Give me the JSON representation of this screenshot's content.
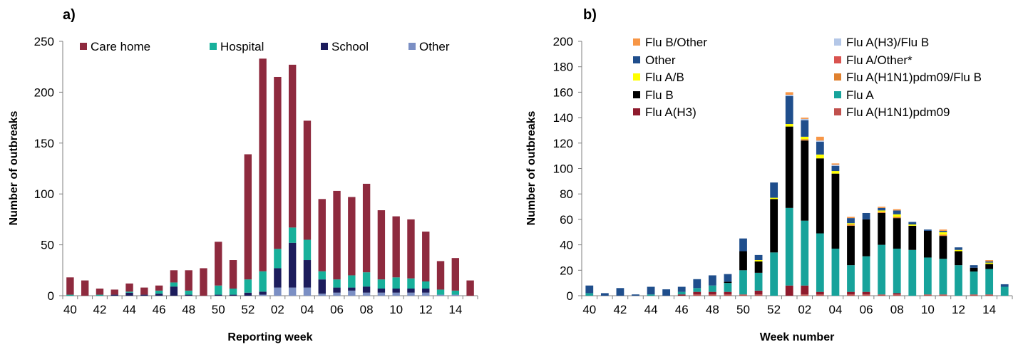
{
  "chart_data": [
    {
      "type": "bar",
      "stacked": true,
      "panel_label": "a)",
      "xlabel": "Reporting week",
      "ylabel": "Number of outbreaks",
      "ylim": [
        0,
        250
      ],
      "yticks": [
        0,
        50,
        100,
        150,
        200,
        250
      ],
      "grid": false,
      "legend_position": "top",
      "categories": [
        "40",
        "41",
        "42",
        "43",
        "44",
        "45",
        "46",
        "47",
        "48",
        "49",
        "50",
        "51",
        "52",
        "53",
        "02",
        "03",
        "04",
        "05",
        "06",
        "07",
        "08",
        "09",
        "10",
        "11",
        "12",
        "13",
        "14",
        "15"
      ],
      "category_labels": [
        "40",
        "",
        "42",
        "",
        "44",
        "",
        "46",
        "",
        "48",
        "",
        "50",
        "",
        "52",
        "",
        "02",
        "",
        "04",
        "",
        "06",
        "",
        "08",
        "",
        "10",
        "",
        "12",
        "",
        "14",
        ""
      ],
      "series": [
        {
          "name": "Other",
          "color": "#7b8fc4",
          "values": [
            0,
            0,
            0,
            0,
            0,
            0,
            0,
            0,
            0,
            0,
            0,
            0,
            0,
            1,
            8,
            8,
            8,
            2,
            3,
            5,
            3,
            3,
            3,
            3,
            3,
            1,
            1,
            0
          ]
        },
        {
          "name": "School",
          "color": "#1c1c5c",
          "values": [
            0,
            0,
            0,
            1,
            3,
            1,
            2,
            9,
            1,
            0,
            1,
            1,
            3,
            3,
            19,
            44,
            27,
            14,
            5,
            3,
            6,
            4,
            4,
            4,
            4,
            0,
            0,
            0
          ]
        },
        {
          "name": "Hospital",
          "color": "#17b09b",
          "values": [
            1,
            0,
            1,
            0,
            1,
            0,
            3,
            4,
            4,
            0,
            9,
            6,
            13,
            20,
            19,
            15,
            20,
            8,
            8,
            12,
            14,
            9,
            11,
            10,
            7,
            5,
            4,
            0
          ]
        },
        {
          "name": "Care home",
          "color": "#8e2a3e",
          "values": [
            17,
            15,
            6,
            5,
            8,
            7,
            5,
            12,
            20,
            27,
            43,
            28,
            123,
            209,
            169,
            160,
            117,
            71,
            87,
            77,
            87,
            68,
            60,
            58,
            49,
            28,
            32,
            15
          ]
        }
      ],
      "legend_order": [
        "Care home",
        "Hospital",
        "School",
        "Other"
      ]
    },
    {
      "type": "bar",
      "stacked": true,
      "panel_label": "b)",
      "xlabel": "Week number",
      "ylabel": "Number of outbreaks",
      "ylim": [
        0,
        200
      ],
      "yticks": [
        0,
        20,
        40,
        60,
        80,
        100,
        120,
        140,
        160,
        180,
        200
      ],
      "grid": false,
      "legend_position": "top",
      "categories": [
        "40",
        "41",
        "42",
        "43",
        "44",
        "45",
        "46",
        "47",
        "48",
        "49",
        "50",
        "51",
        "52",
        "53",
        "02",
        "03",
        "04",
        "05",
        "06",
        "07",
        "08",
        "09",
        "10",
        "11",
        "12",
        "13",
        "14",
        "15"
      ],
      "category_labels": [
        "40",
        "",
        "42",
        "",
        "44",
        "",
        "46",
        "",
        "48",
        "",
        "50",
        "",
        "52",
        "",
        "02",
        "",
        "04",
        "",
        "06",
        "",
        "08",
        "",
        "10",
        "",
        "12",
        "",
        "14",
        ""
      ],
      "series": [
        {
          "name": "Flu A(H1N1)pdm09",
          "color": "#c0504d",
          "values": [
            0,
            0,
            0,
            0,
            0,
            0,
            0,
            1,
            1,
            1,
            1,
            1,
            0,
            0,
            1,
            1,
            0,
            1,
            1,
            1,
            1,
            0,
            1,
            1,
            0,
            1,
            1,
            0
          ]
        },
        {
          "name": "Flu A(H3)",
          "color": "#8e1a2c",
          "values": [
            0,
            0,
            0,
            0,
            0,
            0,
            1,
            2,
            2,
            2,
            0,
            3,
            0,
            8,
            7,
            2,
            0,
            2,
            2,
            0,
            1,
            0,
            0,
            0,
            0,
            0,
            0,
            0
          ]
        },
        {
          "name": "Flu A",
          "color": "#17a39b",
          "values": [
            2,
            0,
            0,
            0,
            1,
            0,
            2,
            3,
            5,
            7,
            19,
            14,
            34,
            61,
            51,
            46,
            37,
            21,
            28,
            39,
            35,
            36,
            29,
            28,
            24,
            18,
            20,
            7
          ]
        },
        {
          "name": "Flu B",
          "color": "#000000",
          "values": [
            0,
            0,
            0,
            0,
            0,
            0,
            0,
            0,
            0,
            1,
            15,
            9,
            42,
            64,
            63,
            59,
            59,
            31,
            29,
            25,
            24,
            19,
            21,
            18,
            11,
            3,
            4,
            0
          ]
        },
        {
          "name": "Flu A(H1N1)pdm09/Flu B",
          "color": "#e0812f",
          "values": [
            0,
            0,
            0,
            0,
            0,
            0,
            0,
            0,
            0,
            0,
            0,
            0,
            0,
            0,
            1,
            0,
            0,
            1,
            0,
            1,
            1,
            0,
            0,
            1,
            0,
            0,
            0,
            0
          ]
        },
        {
          "name": "Flu A/B",
          "color": "#ffff00",
          "values": [
            0,
            0,
            0,
            0,
            0,
            0,
            0,
            0,
            0,
            0,
            0,
            1,
            1,
            2,
            2,
            3,
            2,
            1,
            0,
            1,
            2,
            1,
            0,
            2,
            1,
            0,
            1,
            0
          ]
        },
        {
          "name": "Flu A/Other*",
          "color": "#d9534f",
          "values": [
            0,
            0,
            0,
            0,
            0,
            0,
            0,
            0,
            0,
            0,
            0,
            0,
            0,
            0,
            0,
            0,
            0,
            0,
            0,
            0,
            0,
            0,
            0,
            0,
            0,
            0,
            0,
            0
          ]
        },
        {
          "name": "Other",
          "color": "#1f4e8c",
          "values": [
            6,
            2,
            6,
            1,
            6,
            5,
            4,
            7,
            8,
            6,
            10,
            4,
            12,
            22,
            13,
            10,
            4,
            4,
            5,
            2,
            3,
            2,
            1,
            1,
            2,
            2,
            1,
            2
          ]
        },
        {
          "name": "Flu A(H3)/Flu B",
          "color": "#b4c7e7",
          "values": [
            0,
            0,
            0,
            0,
            0,
            0,
            0,
            0,
            0,
            0,
            0,
            0,
            0,
            1,
            1,
            1,
            1,
            0,
            0,
            0,
            0,
            0,
            0,
            0,
            0,
            0,
            0,
            0
          ]
        },
        {
          "name": "Flu B/Other",
          "color": "#f79646",
          "values": [
            0,
            0,
            0,
            0,
            0,
            0,
            0,
            0,
            0,
            0,
            0,
            0,
            0,
            2,
            1,
            3,
            1,
            1,
            0,
            1,
            1,
            0,
            0,
            1,
            0,
            0,
            1,
            0
          ]
        }
      ],
      "legend_order": [
        "Flu B/Other",
        "Flu A(H3)/Flu B",
        "Other",
        "Flu A/Other*",
        "Flu A/B",
        "Flu A(H1N1)pdm09/Flu B",
        "Flu B",
        "Flu A",
        "Flu A(H3)",
        "Flu A(H1N1)pdm09"
      ]
    }
  ]
}
